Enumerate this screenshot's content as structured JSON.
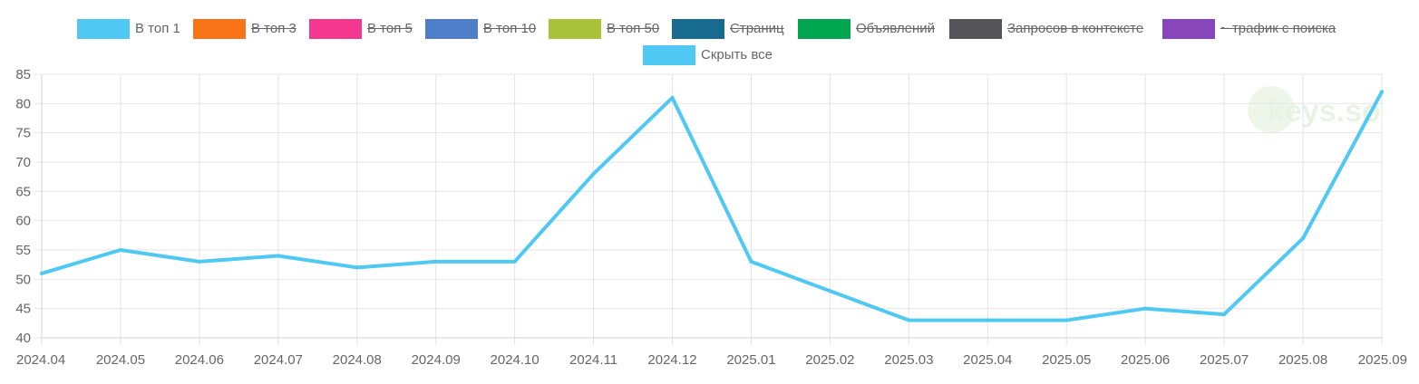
{
  "legend": [
    {
      "label": "В топ 1",
      "color": "#4fc9f3",
      "hidden": false
    },
    {
      "label": "В топ 3",
      "color": "#f97318",
      "hidden": true
    },
    {
      "label": "В топ 5",
      "color": "#f5388f",
      "hidden": true
    },
    {
      "label": "В топ 10",
      "color": "#4f7ec8",
      "hidden": true
    },
    {
      "label": "В топ 50",
      "color": "#a9c23a",
      "hidden": true
    },
    {
      "label": "Страниц",
      "color": "#176b8e",
      "hidden": true
    },
    {
      "label": "Объявлений",
      "color": "#00a650",
      "hidden": true
    },
    {
      "label": "Запросов в контексте",
      "color": "#555559",
      "hidden": true
    },
    {
      "label": "~ трафик с поиска",
      "color": "#8746b9",
      "hidden": true
    },
    {
      "label": "Скрыть все",
      "color": "#4fc9f3",
      "hidden": false
    }
  ],
  "watermark": "keys.so",
  "chart_data": {
    "type": "line",
    "x": [
      "2024.04",
      "2024.05",
      "2024.06",
      "2024.07",
      "2024.08",
      "2024.09",
      "2024.10",
      "2024.11",
      "2024.12",
      "2025.01",
      "2025.02",
      "2025.03",
      "2025.04",
      "2025.05",
      "2025.06",
      "2025.07",
      "2025.08",
      "2025.09"
    ],
    "series": [
      {
        "name": "В топ 1",
        "color": "#4fc9f3",
        "values": [
          51,
          55,
          53,
          54,
          52,
          53,
          53,
          68,
          81,
          53,
          48,
          43,
          43,
          43,
          45,
          44,
          57,
          82
        ]
      }
    ],
    "ylim": [
      40,
      85
    ],
    "yticks": [
      40,
      45,
      50,
      55,
      60,
      65,
      70,
      75,
      80,
      85
    ],
    "grid": true,
    "legend_position": "top"
  }
}
